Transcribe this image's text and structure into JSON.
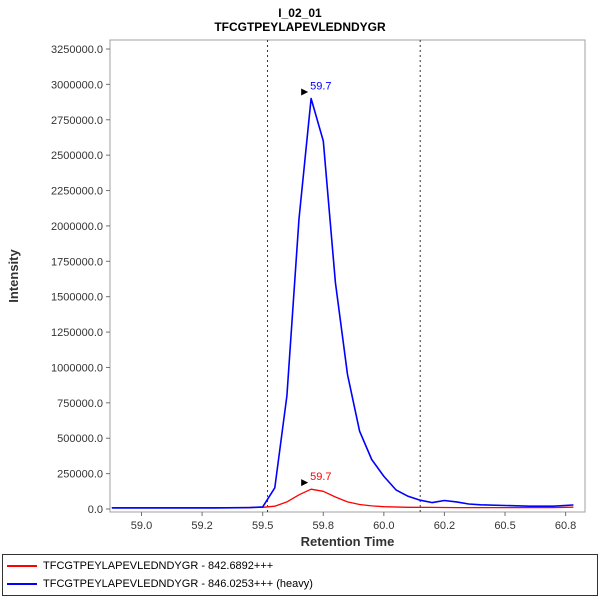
{
  "page": {
    "title_line1": "I_02_01",
    "title_line2": "TFCGTPEYLAPEVLEDNDYGR"
  },
  "chart_data": {
    "type": "line",
    "title": "I_02_01",
    "subtitle": "TFCGTPEYLAPEVLEDNDYGR",
    "xlabel": "Retention Time",
    "ylabel": "Intensity",
    "xlim": [
      58.87,
      60.83
    ],
    "ylim": [
      0,
      3320000
    ],
    "y_axis": {
      "max": 3250000,
      "step": 250000,
      "tick_label_format": "one_decimal"
    },
    "x_ticks": [
      {
        "v": 59.0,
        "label": "59.0"
      },
      {
        "v": 59.25,
        "label": "59.2"
      },
      {
        "v": 59.5,
        "label": "59.5"
      },
      {
        "v": 59.75,
        "label": "59.8"
      },
      {
        "v": 60.0,
        "label": "60.0"
      },
      {
        "v": 60.25,
        "label": "60.2"
      },
      {
        "v": 60.5,
        "label": "60.5"
      },
      {
        "v": 60.75,
        "label": "60.8"
      }
    ],
    "integration_boundaries": [
      59.52,
      60.15
    ],
    "grid": false,
    "legend_position": "bottom",
    "series": [
      {
        "name": "TFCGTPEYLAPEVLEDNDYGR - 842.6892+++",
        "color": "#ff0000",
        "width": 1.3,
        "x": [
          58.88,
          59.0,
          59.1,
          59.2,
          59.3,
          59.4,
          59.5,
          59.55,
          59.6,
          59.65,
          59.7,
          59.75,
          59.8,
          59.85,
          59.9,
          59.95,
          60.0,
          60.1,
          60.2,
          60.3,
          60.4,
          60.5,
          60.6,
          60.7,
          60.78
        ],
        "y": [
          10000,
          10000,
          10000,
          10000,
          10000,
          10000,
          12000,
          20000,
          50000,
          100000,
          140000,
          125000,
          85000,
          50000,
          32000,
          22000,
          16000,
          12000,
          11000,
          10000,
          10000,
          10000,
          10000,
          10000,
          13000
        ],
        "peak_annotation": {
          "x": 59.7,
          "y": 140000,
          "label": "59.7"
        }
      },
      {
        "name": "TFCGTPEYLAPEVLEDNDYGR - 846.0253+++ (heavy)",
        "color": "#0000ff",
        "width": 1.6,
        "x": [
          58.88,
          59.0,
          59.1,
          59.2,
          59.3,
          59.4,
          59.45,
          59.5,
          59.55,
          59.6,
          59.65,
          59.7,
          59.75,
          59.8,
          59.85,
          59.9,
          59.95,
          60.0,
          60.05,
          60.1,
          60.15,
          60.2,
          60.25,
          60.3,
          60.35,
          60.4,
          60.5,
          60.6,
          60.7,
          60.78
        ],
        "y": [
          8000,
          8000,
          8000,
          8000,
          8000,
          9000,
          10000,
          15000,
          150000,
          800000,
          2050000,
          2900000,
          2600000,
          1600000,
          950000,
          550000,
          350000,
          230000,
          135000,
          90000,
          62000,
          45000,
          60000,
          50000,
          35000,
          30000,
          25000,
          20000,
          20000,
          28000
        ],
        "peak_annotation": {
          "x": 59.7,
          "y": 2900000,
          "label": "59.7"
        }
      }
    ]
  },
  "legend": {
    "items": [
      {
        "label": "TFCGTPEYLAPEVLEDNDYGR - 842.6892+++",
        "color": "#ff0000"
      },
      {
        "label": "TFCGTPEYLAPEVLEDNDYGR - 846.0253+++ (heavy)",
        "color": "#0000ff"
      }
    ]
  },
  "colors": {
    "light_series": "#ff0000",
    "heavy_series": "#0000ff",
    "plot_border": "#a0a0a0",
    "boundary_line": "#333333"
  }
}
